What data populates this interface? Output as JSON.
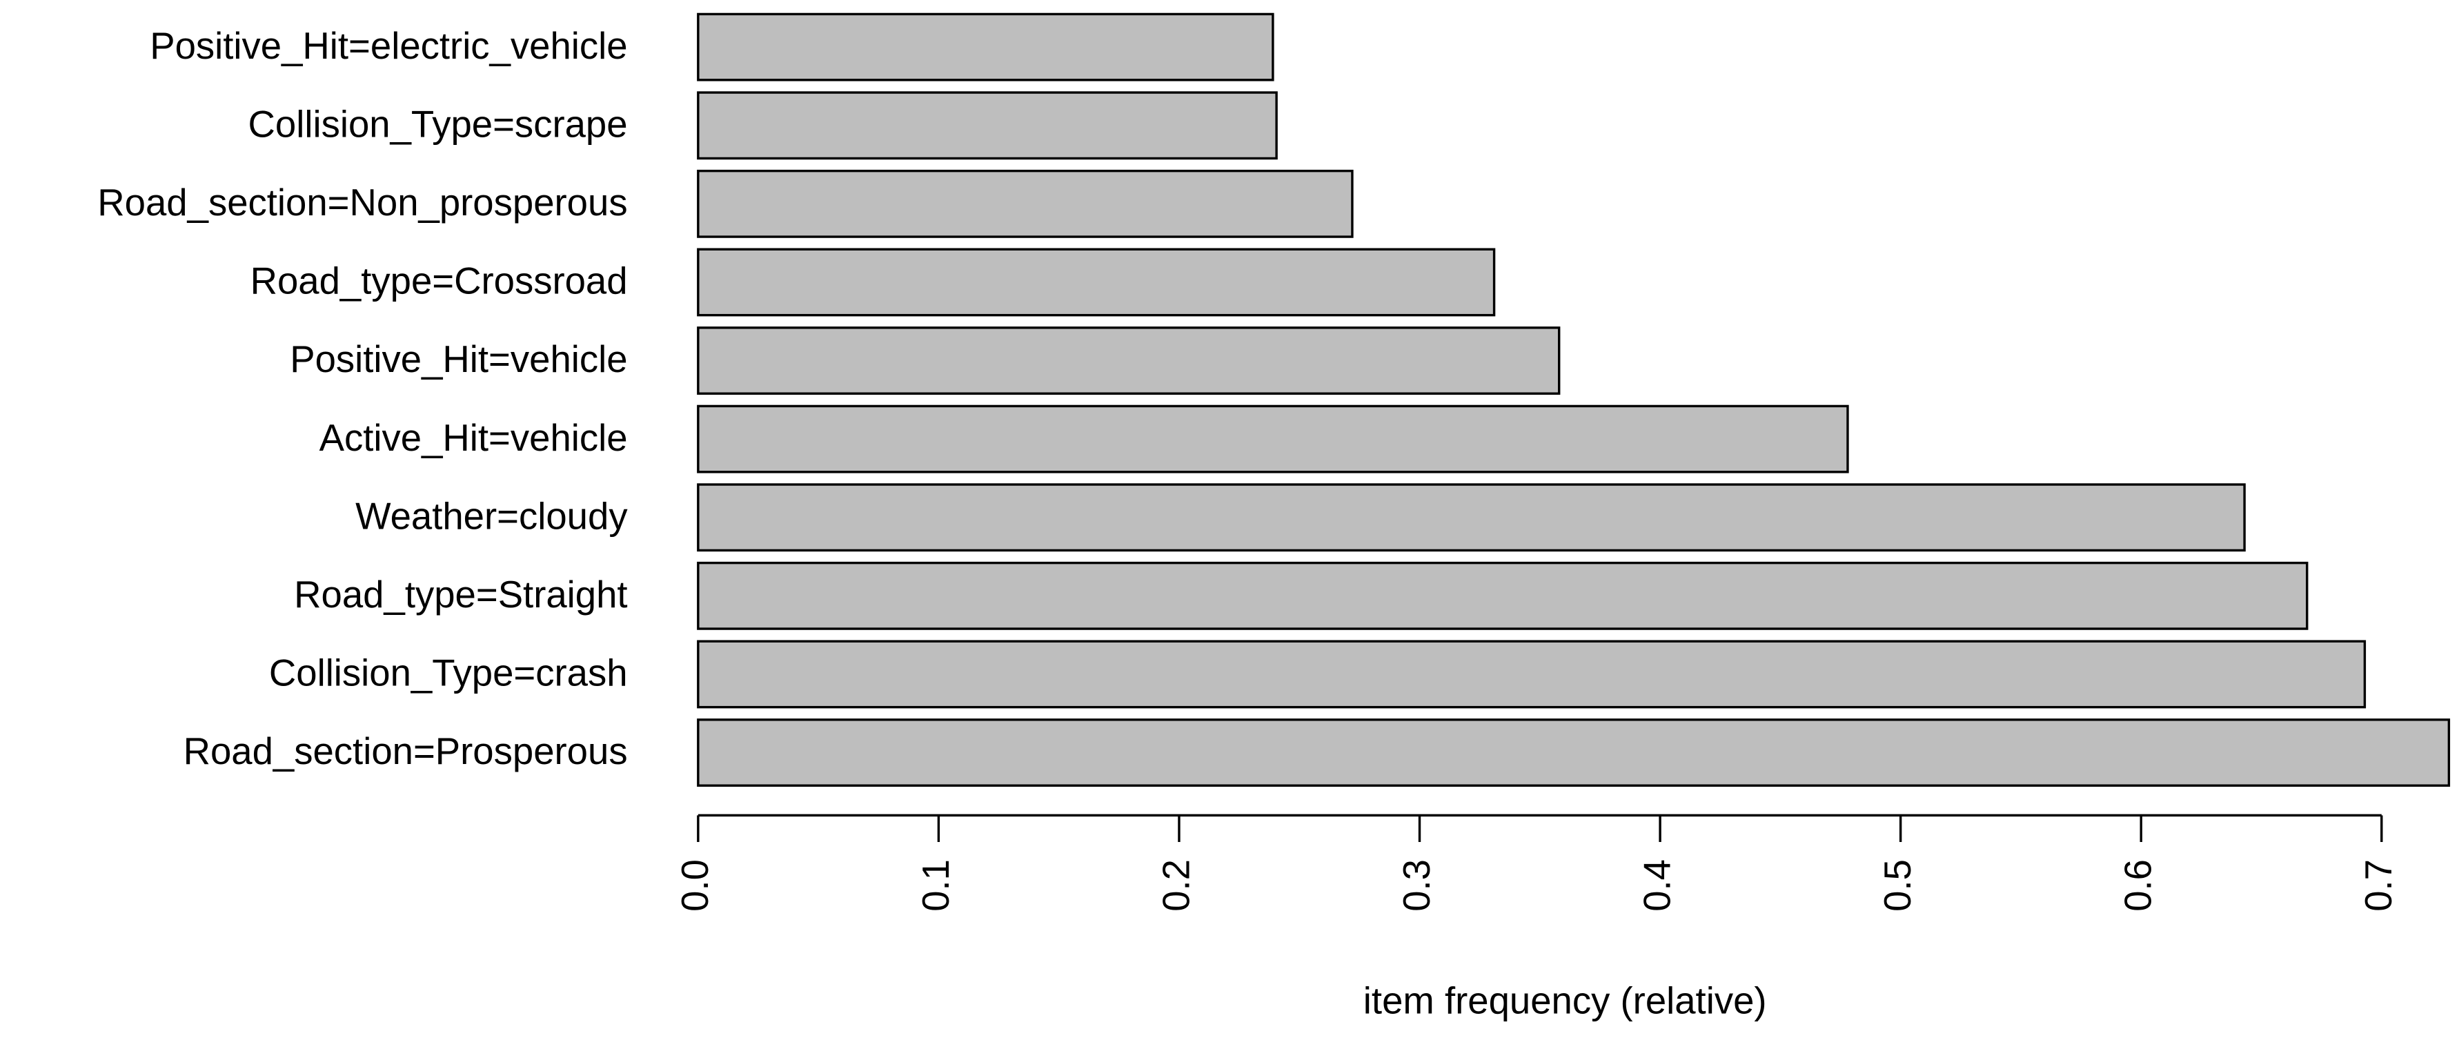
{
  "chart_data": {
    "type": "hbar",
    "categories": [
      "Positive_Hit=electric_vehicle",
      "Collision_Type=scrape",
      "Road_section=Non_prosperous",
      "Road_type=Crossroad",
      "Positive_Hit=vehicle",
      "Active_Hit=vehicle",
      "Weather=cloudy",
      "Road_type=Straight",
      "Collision_Type=crash",
      "Road_section=Prosperous"
    ],
    "values": [
      0.239,
      0.2405,
      0.272,
      0.331,
      0.358,
      0.478,
      0.643,
      0.669,
      0.693,
      0.728
    ],
    "color": "#bebebe",
    "xlabel": "item frequency (relative)",
    "xlim": [
      0,
      0.73
    ],
    "xticks": [
      {
        "value": 0,
        "label": "0.0"
      },
      0.1,
      0.2,
      0.3,
      0.4,
      0.5,
      0.6,
      0.7
    ]
  }
}
